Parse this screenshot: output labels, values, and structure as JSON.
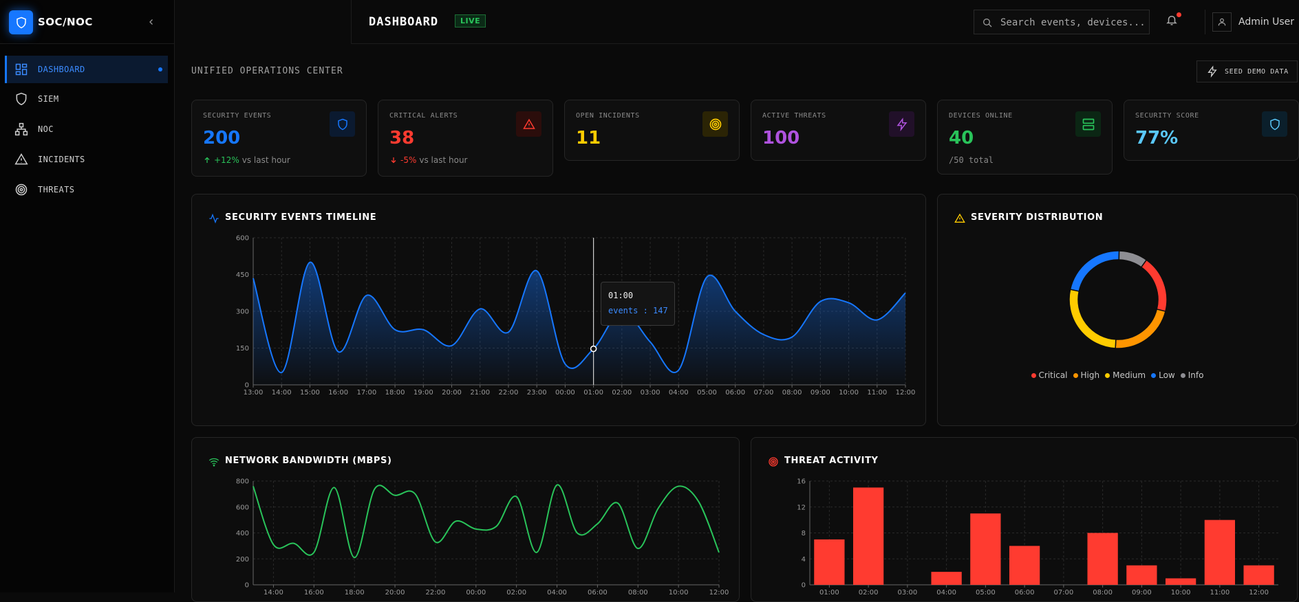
{
  "brand": {
    "name": "SOC/NOC"
  },
  "sidebar": {
    "items": [
      {
        "label": "DASHBOARD",
        "icon": "dashboard-icon",
        "active": true
      },
      {
        "label": "SIEM",
        "icon": "shield-icon"
      },
      {
        "label": "NOC",
        "icon": "network-icon"
      },
      {
        "label": "INCIDENTS",
        "icon": "alert-triangle-icon"
      },
      {
        "label": "THREATS",
        "icon": "target-icon"
      }
    ]
  },
  "header": {
    "title": "DASHBOARD",
    "live_badge": "LIVE",
    "search_placeholder": "Search events, devices...",
    "user_name": "Admin User"
  },
  "main": {
    "section_title": "UNIFIED OPERATIONS CENTER",
    "seed_button": "SEED DEMO DATA"
  },
  "colors": {
    "accent": "#1677ff",
    "critical": "#ff3b30",
    "high": "#ff9500",
    "medium": "#ffcc00",
    "low": "#1677ff",
    "info": "#8e8e93",
    "green": "#29c35a",
    "purple": "#af52de",
    "cyan": "#5ac8fa"
  },
  "stats": [
    {
      "label": "SECURITY EVENTS",
      "value": "200",
      "icon": "shield-icon",
      "change": "+12%",
      "change_suffix": "vs last hour",
      "trend": "up"
    },
    {
      "label": "CRITICAL ALERTS",
      "value": "38",
      "icon": "alert-triangle-icon",
      "change": "-5%",
      "change_suffix": "vs last hour",
      "trend": "down"
    },
    {
      "label": "OPEN INCIDENTS",
      "value": "11",
      "icon": "target-icon"
    },
    {
      "label": "ACTIVE THREATS",
      "value": "100",
      "icon": "lightning-icon"
    },
    {
      "label": "DEVICES ONLINE",
      "value": "40",
      "icon": "server-icon",
      "sub": "/50 total"
    },
    {
      "label": "SECURITY SCORE",
      "value": "77%",
      "icon": "shield-icon"
    }
  ],
  "panels": {
    "timeline": {
      "title": "SECURITY EVENTS TIMELINE",
      "tooltip_time": "01:00",
      "tooltip_value": "events : 147"
    },
    "severity": {
      "title": "SEVERITY DISTRIBUTION"
    },
    "bandwidth": {
      "title": "NETWORK BANDWIDTH (MBPS)"
    },
    "threats": {
      "title": "THREAT ACTIVITY"
    }
  },
  "chart_data": [
    {
      "id": "timeline",
      "type": "area",
      "x": [
        "13:00",
        "14:00",
        "15:00",
        "16:00",
        "17:00",
        "18:00",
        "19:00",
        "20:00",
        "21:00",
        "22:00",
        "23:00",
        "00:00",
        "01:00",
        "02:00",
        "03:00",
        "04:00",
        "05:00",
        "06:00",
        "07:00",
        "08:00",
        "09:00",
        "10:00",
        "11:00",
        "12:00"
      ],
      "series": [
        {
          "values": [
            435,
            50,
            500,
            135,
            365,
            225,
            225,
            160,
            310,
            215,
            465,
            85,
            147,
            300,
            175,
            60,
            440,
            300,
            205,
            195,
            340,
            335,
            265,
            375
          ]
        }
      ],
      "ylim": [
        0,
        600
      ],
      "yticks": [
        0,
        150,
        300,
        450,
        600
      ],
      "grid": true,
      "highlight": {
        "x": "01:00",
        "value": 147
      }
    },
    {
      "id": "severity",
      "type": "pie",
      "categories": [
        "Critical",
        "High",
        "Medium",
        "Low",
        "Info"
      ],
      "values": [
        38,
        44,
        55,
        44,
        19
      ],
      "legend": "bottom"
    },
    {
      "id": "bandwidth",
      "type": "line",
      "x": [
        "13:00",
        "14:00",
        "15:00",
        "16:00",
        "17:00",
        "18:00",
        "19:00",
        "20:00",
        "21:00",
        "22:00",
        "23:00",
        "00:00",
        "01:00",
        "02:00",
        "03:00",
        "04:00",
        "05:00",
        "06:00",
        "07:00",
        "08:00",
        "09:00",
        "10:00",
        "11:00",
        "12:00"
      ],
      "xtick_labels": [
        "14:00",
        "16:00",
        "18:00",
        "20:00",
        "22:00",
        "00:00",
        "02:00",
        "04:00",
        "06:00",
        "08:00",
        "10:00",
        "12:00"
      ],
      "series": [
        {
          "values": [
            760,
            310,
            320,
            250,
            750,
            210,
            740,
            690,
            700,
            330,
            490,
            430,
            450,
            680,
            250,
            770,
            400,
            470,
            630,
            280,
            590,
            760,
            640,
            250
          ]
        }
      ],
      "ylim": [
        0,
        800
      ],
      "yticks": [
        0,
        200,
        400,
        600,
        800
      ],
      "grid": true
    },
    {
      "id": "threats",
      "type": "bar",
      "categories": [
        "01:00",
        "02:00",
        "03:00",
        "04:00",
        "05:00",
        "06:00",
        "07:00",
        "08:00",
        "09:00",
        "10:00",
        "11:00",
        "12:00"
      ],
      "values": [
        7,
        15,
        0,
        2,
        11,
        6,
        0,
        8,
        3,
        1,
        10,
        3
      ],
      "ylim": [
        0,
        16
      ],
      "yticks": [
        0,
        4,
        8,
        12,
        16
      ],
      "grid": true
    }
  ]
}
